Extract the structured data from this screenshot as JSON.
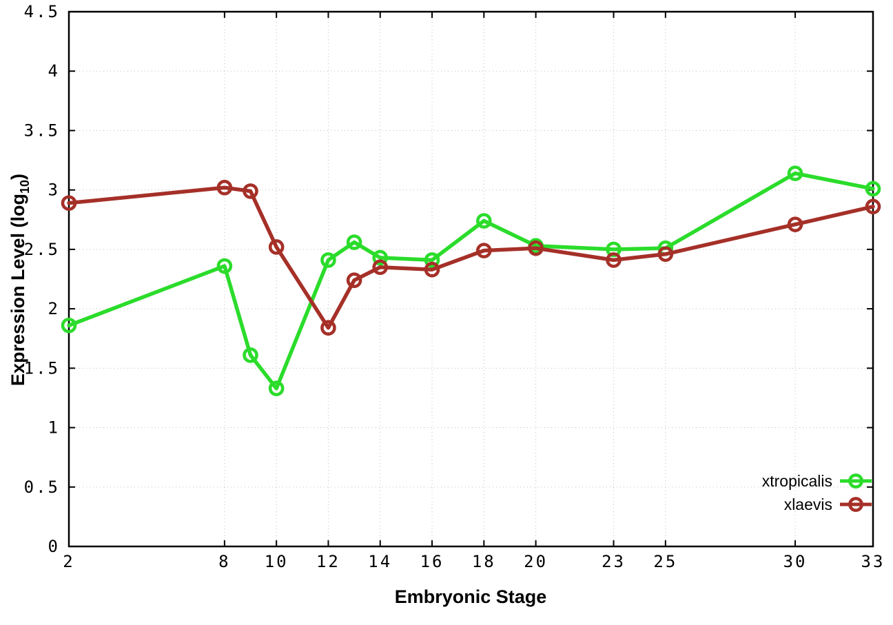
{
  "figure": {
    "xlabel": "Embryonic Stage",
    "ylabel_prefix": "Expression Level (log",
    "ylabel_sub": "10",
    "ylabel_suffix": ")"
  },
  "chart_data": {
    "type": "line",
    "title": "",
    "xlabel": "Embryonic Stage",
    "ylabel": "Expression Level (log10)",
    "x": [
      2,
      8,
      9,
      10,
      12,
      13,
      14,
      16,
      18,
      20,
      23,
      25,
      30,
      33
    ],
    "series": [
      {
        "name": "xtropicalis",
        "color": "#2bdc2b",
        "marker": "open-circle",
        "values": [
          1.86,
          2.36,
          1.61,
          1.33,
          2.41,
          2.56,
          2.43,
          2.41,
          2.74,
          2.53,
          2.5,
          2.51,
          3.14,
          3.01
        ]
      },
      {
        "name": "xlaevis",
        "color": "#a53028",
        "marker": "open-circle",
        "values": [
          2.89,
          3.02,
          2.99,
          2.52,
          1.84,
          2.24,
          2.35,
          2.33,
          2.49,
          2.51,
          2.41,
          2.46,
          2.71,
          2.86
        ]
      }
    ],
    "xlim": [
      2,
      33
    ],
    "ylim": [
      0,
      4.5
    ],
    "x_ticks": [
      2,
      8,
      10,
      12,
      14,
      16,
      18,
      20,
      23,
      25,
      30,
      33
    ],
    "y_ticks": [
      0,
      0.5,
      1,
      1.5,
      2,
      2.5,
      3,
      3.5,
      4,
      4.5
    ],
    "y_tick_labels": [
      "0",
      "0.5",
      "1",
      "1.5",
      "2",
      "2.5",
      "3",
      "3.5",
      "4",
      "4.5"
    ],
    "grid": true,
    "grid_style": "dotted",
    "legend_position": "bottom-right-inside",
    "background_color": "#ffffff",
    "axis_color": "#000000"
  }
}
